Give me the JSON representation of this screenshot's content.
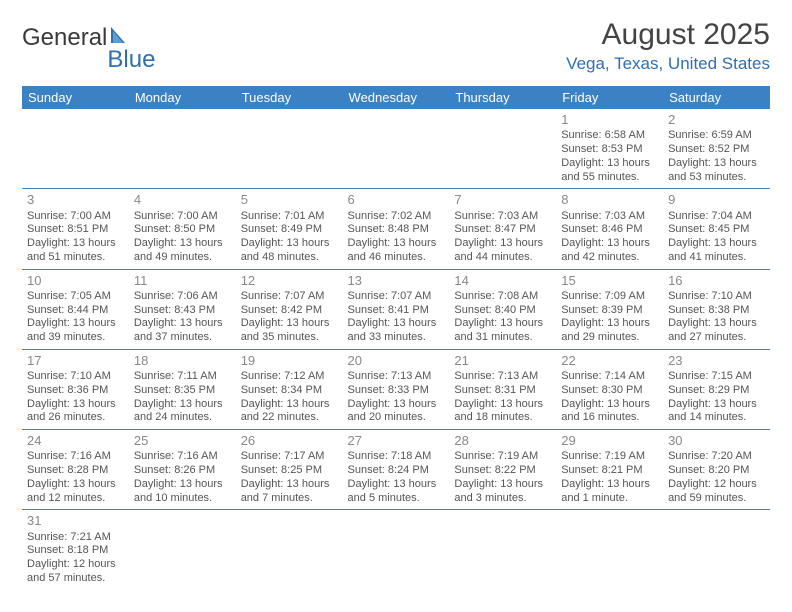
{
  "brand": {
    "part1": "General",
    "part2": "Blue"
  },
  "title": "August 2025",
  "location": "Vega, Texas, United States",
  "colors": {
    "headerBg": "#3a82c4",
    "accent": "#2f6fb0",
    "text": "#555555",
    "dayNum": "#888888",
    "pageBg": "#ffffff"
  },
  "dayHeaders": [
    "Sunday",
    "Monday",
    "Tuesday",
    "Wednesday",
    "Thursday",
    "Friday",
    "Saturday"
  ],
  "weeks": [
    [
      null,
      null,
      null,
      null,
      null,
      {
        "n": "1",
        "sr": "Sunrise: 6:58 AM",
        "ss": "Sunset: 8:53 PM",
        "dl1": "Daylight: 13 hours",
        "dl2": "and 55 minutes."
      },
      {
        "n": "2",
        "sr": "Sunrise: 6:59 AM",
        "ss": "Sunset: 8:52 PM",
        "dl1": "Daylight: 13 hours",
        "dl2": "and 53 minutes."
      }
    ],
    [
      {
        "n": "3",
        "sr": "Sunrise: 7:00 AM",
        "ss": "Sunset: 8:51 PM",
        "dl1": "Daylight: 13 hours",
        "dl2": "and 51 minutes."
      },
      {
        "n": "4",
        "sr": "Sunrise: 7:00 AM",
        "ss": "Sunset: 8:50 PM",
        "dl1": "Daylight: 13 hours",
        "dl2": "and 49 minutes."
      },
      {
        "n": "5",
        "sr": "Sunrise: 7:01 AM",
        "ss": "Sunset: 8:49 PM",
        "dl1": "Daylight: 13 hours",
        "dl2": "and 48 minutes."
      },
      {
        "n": "6",
        "sr": "Sunrise: 7:02 AM",
        "ss": "Sunset: 8:48 PM",
        "dl1": "Daylight: 13 hours",
        "dl2": "and 46 minutes."
      },
      {
        "n": "7",
        "sr": "Sunrise: 7:03 AM",
        "ss": "Sunset: 8:47 PM",
        "dl1": "Daylight: 13 hours",
        "dl2": "and 44 minutes."
      },
      {
        "n": "8",
        "sr": "Sunrise: 7:03 AM",
        "ss": "Sunset: 8:46 PM",
        "dl1": "Daylight: 13 hours",
        "dl2": "and 42 minutes."
      },
      {
        "n": "9",
        "sr": "Sunrise: 7:04 AM",
        "ss": "Sunset: 8:45 PM",
        "dl1": "Daylight: 13 hours",
        "dl2": "and 41 minutes."
      }
    ],
    [
      {
        "n": "10",
        "sr": "Sunrise: 7:05 AM",
        "ss": "Sunset: 8:44 PM",
        "dl1": "Daylight: 13 hours",
        "dl2": "and 39 minutes."
      },
      {
        "n": "11",
        "sr": "Sunrise: 7:06 AM",
        "ss": "Sunset: 8:43 PM",
        "dl1": "Daylight: 13 hours",
        "dl2": "and 37 minutes."
      },
      {
        "n": "12",
        "sr": "Sunrise: 7:07 AM",
        "ss": "Sunset: 8:42 PM",
        "dl1": "Daylight: 13 hours",
        "dl2": "and 35 minutes."
      },
      {
        "n": "13",
        "sr": "Sunrise: 7:07 AM",
        "ss": "Sunset: 8:41 PM",
        "dl1": "Daylight: 13 hours",
        "dl2": "and 33 minutes."
      },
      {
        "n": "14",
        "sr": "Sunrise: 7:08 AM",
        "ss": "Sunset: 8:40 PM",
        "dl1": "Daylight: 13 hours",
        "dl2": "and 31 minutes."
      },
      {
        "n": "15",
        "sr": "Sunrise: 7:09 AM",
        "ss": "Sunset: 8:39 PM",
        "dl1": "Daylight: 13 hours",
        "dl2": "and 29 minutes."
      },
      {
        "n": "16",
        "sr": "Sunrise: 7:10 AM",
        "ss": "Sunset: 8:38 PM",
        "dl1": "Daylight: 13 hours",
        "dl2": "and 27 minutes."
      }
    ],
    [
      {
        "n": "17",
        "sr": "Sunrise: 7:10 AM",
        "ss": "Sunset: 8:36 PM",
        "dl1": "Daylight: 13 hours",
        "dl2": "and 26 minutes."
      },
      {
        "n": "18",
        "sr": "Sunrise: 7:11 AM",
        "ss": "Sunset: 8:35 PM",
        "dl1": "Daylight: 13 hours",
        "dl2": "and 24 minutes."
      },
      {
        "n": "19",
        "sr": "Sunrise: 7:12 AM",
        "ss": "Sunset: 8:34 PM",
        "dl1": "Daylight: 13 hours",
        "dl2": "and 22 minutes."
      },
      {
        "n": "20",
        "sr": "Sunrise: 7:13 AM",
        "ss": "Sunset: 8:33 PM",
        "dl1": "Daylight: 13 hours",
        "dl2": "and 20 minutes."
      },
      {
        "n": "21",
        "sr": "Sunrise: 7:13 AM",
        "ss": "Sunset: 8:31 PM",
        "dl1": "Daylight: 13 hours",
        "dl2": "and 18 minutes."
      },
      {
        "n": "22",
        "sr": "Sunrise: 7:14 AM",
        "ss": "Sunset: 8:30 PM",
        "dl1": "Daylight: 13 hours",
        "dl2": "and 16 minutes."
      },
      {
        "n": "23",
        "sr": "Sunrise: 7:15 AM",
        "ss": "Sunset: 8:29 PM",
        "dl1": "Daylight: 13 hours",
        "dl2": "and 14 minutes."
      }
    ],
    [
      {
        "n": "24",
        "sr": "Sunrise: 7:16 AM",
        "ss": "Sunset: 8:28 PM",
        "dl1": "Daylight: 13 hours",
        "dl2": "and 12 minutes."
      },
      {
        "n": "25",
        "sr": "Sunrise: 7:16 AM",
        "ss": "Sunset: 8:26 PM",
        "dl1": "Daylight: 13 hours",
        "dl2": "and 10 minutes."
      },
      {
        "n": "26",
        "sr": "Sunrise: 7:17 AM",
        "ss": "Sunset: 8:25 PM",
        "dl1": "Daylight: 13 hours",
        "dl2": "and 7 minutes."
      },
      {
        "n": "27",
        "sr": "Sunrise: 7:18 AM",
        "ss": "Sunset: 8:24 PM",
        "dl1": "Daylight: 13 hours",
        "dl2": "and 5 minutes."
      },
      {
        "n": "28",
        "sr": "Sunrise: 7:19 AM",
        "ss": "Sunset: 8:22 PM",
        "dl1": "Daylight: 13 hours",
        "dl2": "and 3 minutes."
      },
      {
        "n": "29",
        "sr": "Sunrise: 7:19 AM",
        "ss": "Sunset: 8:21 PM",
        "dl1": "Daylight: 13 hours",
        "dl2": "and 1 minute."
      },
      {
        "n": "30",
        "sr": "Sunrise: 7:20 AM",
        "ss": "Sunset: 8:20 PM",
        "dl1": "Daylight: 12 hours",
        "dl2": "and 59 minutes."
      }
    ],
    [
      {
        "n": "31",
        "sr": "Sunrise: 7:21 AM",
        "ss": "Sunset: 8:18 PM",
        "dl1": "Daylight: 12 hours",
        "dl2": "and 57 minutes."
      },
      null,
      null,
      null,
      null,
      null,
      null
    ]
  ]
}
